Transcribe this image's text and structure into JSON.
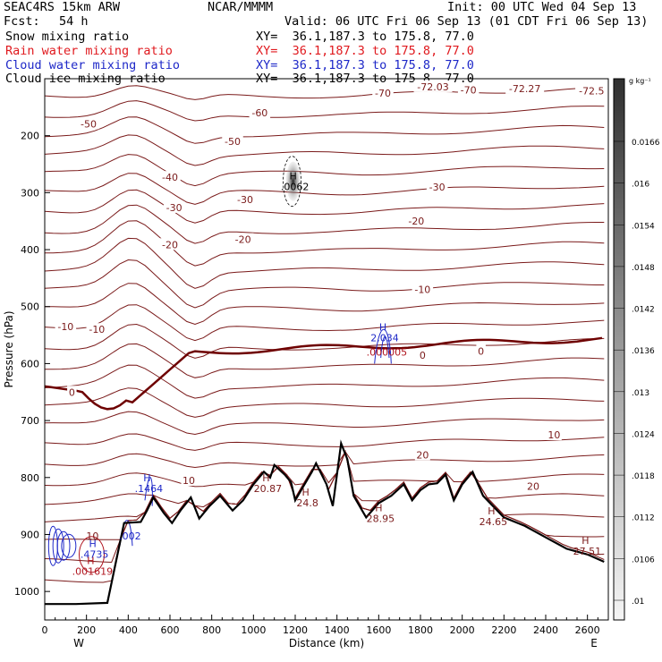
{
  "header": {
    "model": "SEAC4RS 15km ARW",
    "org": "NCAR/MMMM",
    "init": "Init: 00 UTC Wed 04 Sep 13",
    "fcst_label": "Fcst:",
    "fcst_value": "54 h",
    "valid": "Valid: 06 UTC Fri 06 Sep 13 (01 CDT Fri 06 Sep 13)"
  },
  "legend": [
    {
      "name": "Snow mixing ratio",
      "xy": "XY=  36.1,187.3 to 175.8, 77.0",
      "color": "#000000"
    },
    {
      "name": "Rain water mixing ratio",
      "xy": "XY=  36.1,187.3 to 175.8, 77.0",
      "color": "#e0191e"
    },
    {
      "name": "Cloud water mixing ratio",
      "xy": "XY=  36.1,187.3 to 175.8, 77.0",
      "color": "#1e28c8"
    },
    {
      "name": "Cloud ice mixing ratio",
      "xy": "XY=  36.1,187.3 to 175.8, 77.0",
      "color": "#000000"
    }
  ],
  "colors": {
    "temperature_contour": "#7a1a1a",
    "zero_isotherm": "#6e0000",
    "terrain": "#000000",
    "cloud_water": "#1e28c8",
    "rain_water": "#b0141e",
    "background": "#ffffff"
  },
  "chart_data": {
    "type": "cross-section",
    "xlabel": "Distance (km)",
    "ylabel": "Pressure (hPa)",
    "xlim": [
      0,
      2700
    ],
    "ylim": [
      1050,
      100
    ],
    "x_ticks": [
      "0",
      "200",
      "400",
      "600",
      "800",
      "1000",
      "1200",
      "1400",
      "1600",
      "1800",
      "2000",
      "2200",
      "2400",
      "2600"
    ],
    "y_ticks": [
      "200",
      "300",
      "400",
      "500",
      "600",
      "700",
      "800",
      "900",
      "1000"
    ],
    "x_end_labels": {
      "left": "W",
      "right": "E"
    },
    "colorbar": {
      "unit": "g kg⁻¹",
      "ticks": [
        "0.0166",
        ".016",
        ".0154",
        ".0148",
        ".0142",
        ".0136",
        ".013",
        ".0124",
        ".0118",
        ".0112",
        ".0106",
        ".01"
      ],
      "values": [
        0.0166,
        0.016,
        0.0154,
        0.0148,
        0.0142,
        0.0136,
        0.013,
        0.0124,
        0.0118,
        0.0112,
        0.0106,
        0.01
      ]
    },
    "terrain": {
      "name": "Terrain surface",
      "points": [
        [
          0,
          1022
        ],
        [
          150,
          1022
        ],
        [
          300,
          1020
        ],
        [
          380,
          880
        ],
        [
          460,
          878
        ],
        [
          490,
          858
        ],
        [
          520,
          835
        ],
        [
          570,
          862
        ],
        [
          610,
          880
        ],
        [
          650,
          858
        ],
        [
          700,
          835
        ],
        [
          740,
          872
        ],
        [
          790,
          850
        ],
        [
          840,
          832
        ],
        [
          900,
          858
        ],
        [
          950,
          840
        ],
        [
          1000,
          812
        ],
        [
          1050,
          790
        ],
        [
          1080,
          800
        ],
        [
          1100,
          778
        ],
        [
          1150,
          795
        ],
        [
          1180,
          808
        ],
        [
          1200,
          840
        ],
        [
          1240,
          815
        ],
        [
          1280,
          790
        ],
        [
          1300,
          775
        ],
        [
          1350,
          812
        ],
        [
          1380,
          850
        ],
        [
          1420,
          740
        ],
        [
          1450,
          768
        ],
        [
          1480,
          832
        ],
        [
          1540,
          870
        ],
        [
          1600,
          845
        ],
        [
          1660,
          832
        ],
        [
          1720,
          812
        ],
        [
          1760,
          840
        ],
        [
          1800,
          822
        ],
        [
          1840,
          812
        ],
        [
          1880,
          810
        ],
        [
          1920,
          795
        ],
        [
          1960,
          840
        ],
        [
          2000,
          812
        ],
        [
          2050,
          790
        ],
        [
          2100,
          832
        ],
        [
          2200,
          870
        ],
        [
          2300,
          885
        ],
        [
          2400,
          905
        ],
        [
          2500,
          925
        ],
        [
          2600,
          935
        ],
        [
          2680,
          948
        ]
      ]
    },
    "isotherm_labels": [
      {
        "label": "-70",
        "x": 1620,
        "p": 125
      },
      {
        "label": "-70",
        "x": 2030,
        "p": 120
      },
      {
        "label": "-72.03",
        "x": 1860,
        "p": 114
      },
      {
        "label": "-72.27",
        "x": 2300,
        "p": 117
      },
      {
        "label": "-72.5",
        "x": 2620,
        "p": 121
      },
      {
        "label": "-60",
        "x": 1030,
        "p": 160
      },
      {
        "label": "-50",
        "x": 210,
        "p": 179
      },
      {
        "label": "-50",
        "x": 900,
        "p": 210
      },
      {
        "label": "-40",
        "x": 600,
        "p": 273
      },
      {
        "label": "-30",
        "x": 620,
        "p": 326
      },
      {
        "label": "-30",
        "x": 960,
        "p": 312
      },
      {
        "label": "-30",
        "x": 1880,
        "p": 290
      },
      {
        "label": "-20",
        "x": 600,
        "p": 391
      },
      {
        "label": "-20",
        "x": 950,
        "p": 382
      },
      {
        "label": "-20",
        "x": 1780,
        "p": 350
      },
      {
        "label": "-10",
        "x": 100,
        "p": 535
      },
      {
        "label": "-10",
        "x": 250,
        "p": 540
      },
      {
        "label": "-10",
        "x": 1810,
        "p": 470
      },
      {
        "label": "0",
        "x": 130,
        "p": 650
      },
      {
        "label": "0",
        "x": 1810,
        "p": 585
      },
      {
        "label": "0",
        "x": 2090,
        "p": 578
      },
      {
        "label": "10",
        "x": 690,
        "p": 805
      },
      {
        "label": "10",
        "x": 2440,
        "p": 725
      },
      {
        "label": "20",
        "x": 1810,
        "p": 760
      },
      {
        "label": "20",
        "x": 2340,
        "p": 815
      }
    ],
    "extrema": [
      {
        "label": "H",
        "value": ".0062",
        "x": 1190,
        "p": 280,
        "color": "#000000"
      },
      {
        "label": "H",
        "value": "2.034",
        "x": 1620,
        "p": 545,
        "color": "#1e28c8"
      },
      {
        "label": "",
        "value": ".000005",
        "x": 1630,
        "p": 570,
        "color": "#b0141e"
      },
      {
        "label": "H",
        "value": ".1464",
        "x": 490,
        "p": 810,
        "color": "#1e28c8"
      },
      {
        "label": "",
        "value": ".002",
        "x": 400,
        "p": 893,
        "color": "#1e28c8"
      },
      {
        "label": "",
        "value": "10",
        "x": 220,
        "p": 893,
        "color": "#7a1a1a"
      },
      {
        "label": "H",
        "value": ".4735",
        "x": 230,
        "p": 925,
        "color": "#1e28c8"
      },
      {
        "label": "H",
        "value": ".001619",
        "x": 220,
        "p": 955,
        "color": "#b0141e"
      },
      {
        "label": "H",
        "value": "20.87",
        "x": 1060,
        "p": 810,
        "color": "#7a1a1a"
      },
      {
        "label": "H",
        "value": "24.8",
        "x": 1250,
        "p": 835,
        "color": "#7a1a1a"
      },
      {
        "label": "H",
        "value": "28.95",
        "x": 1600,
        "p": 862,
        "color": "#7a1a1a"
      },
      {
        "label": "H",
        "value": "24.65",
        "x": 2140,
        "p": 868,
        "color": "#7a1a1a"
      },
      {
        "label": "H",
        "value": "27.51",
        "x": 2590,
        "p": 920,
        "color": "#7a1a1a"
      }
    ]
  }
}
